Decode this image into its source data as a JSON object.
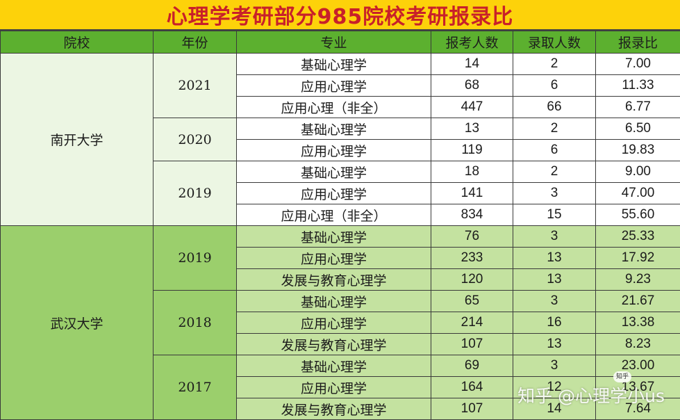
{
  "title": "心理学考研部分985院校考研报录比",
  "headers": [
    "院校",
    "年份",
    "专业",
    "报考人数",
    "录取人数",
    "报录比"
  ],
  "universities": [
    {
      "name": "南开大学",
      "years": [
        {
          "year": "2021",
          "rows": [
            {
              "major": "基础心理学",
              "applicants": "14",
              "admitted": "2",
              "ratio": "7.00"
            },
            {
              "major": "应用心理学",
              "applicants": "68",
              "admitted": "6",
              "ratio": "11.33"
            },
            {
              "major": "应用心理（非全）",
              "applicants": "447",
              "admitted": "66",
              "ratio": "6.77"
            }
          ]
        },
        {
          "year": "2020",
          "rows": [
            {
              "major": "基础心理学",
              "applicants": "13",
              "admitted": "2",
              "ratio": "6.50"
            },
            {
              "major": "应用心理学",
              "applicants": "119",
              "admitted": "6",
              "ratio": "19.83"
            }
          ]
        },
        {
          "year": "2019",
          "rows": [
            {
              "major": "基础心理学",
              "applicants": "18",
              "admitted": "2",
              "ratio": "9.00"
            },
            {
              "major": "应用心理学",
              "applicants": "141",
              "admitted": "3",
              "ratio": "47.00"
            },
            {
              "major": "应用心理（非全）",
              "applicants": "834",
              "admitted": "15",
              "ratio": "55.60"
            }
          ]
        }
      ]
    },
    {
      "name": "武汉大学",
      "years": [
        {
          "year": "2019",
          "rows": [
            {
              "major": "基础心理学",
              "applicants": "76",
              "admitted": "3",
              "ratio": "25.33"
            },
            {
              "major": "应用心理学",
              "applicants": "233",
              "admitted": "13",
              "ratio": "17.92"
            },
            {
              "major": "发展与教育心理学",
              "applicants": "120",
              "admitted": "13",
              "ratio": "9.23"
            }
          ]
        },
        {
          "year": "2018",
          "rows": [
            {
              "major": "基础心理学",
              "applicants": "65",
              "admitted": "3",
              "ratio": "21.67"
            },
            {
              "major": "应用心理学",
              "applicants": "214",
              "admitted": "16",
              "ratio": "13.38"
            },
            {
              "major": "发展与教育心理学",
              "applicants": "107",
              "admitted": "13",
              "ratio": "8.23"
            }
          ]
        },
        {
          "year": "2017",
          "rows": [
            {
              "major": "基础心理学",
              "applicants": "69",
              "admitted": "3",
              "ratio": "23.00"
            },
            {
              "major": "应用心理学",
              "applicants": "164",
              "admitted": "12",
              "ratio": "13.67"
            },
            {
              "major": "发展与教育心理学",
              "applicants": "107",
              "admitted": "14",
              "ratio": "7.64"
            }
          ]
        }
      ]
    }
  ],
  "watermark": "知乎 @心理学小us"
}
